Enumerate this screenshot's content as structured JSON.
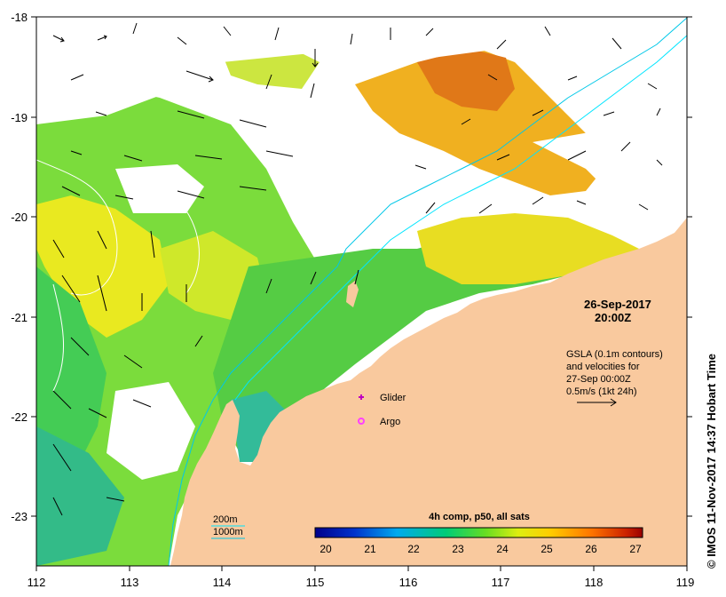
{
  "map": {
    "date": "26-Sep-2017",
    "time": "20:00Z",
    "gsla_line1": "GSLA (0.1m contours)",
    "gsla_line2": "and velocities for",
    "gsla_line3": "27-Sep 00:00Z",
    "velocity_scale": "0.5m/s (1kt 24h)",
    "glider_label": "Glider",
    "argo_label": "Argo",
    "depth_200": "200m",
    "depth_1000": "1000m",
    "colorbar_title": "4h comp, p50, all sats",
    "colorbar_ticks": [
      "20",
      "21",
      "22",
      "23",
      "24",
      "25",
      "26",
      "27"
    ],
    "credit": "© IMOS 11-Nov-2017 14:37 Hobart Time",
    "lon_ticks": [
      "112",
      "113",
      "114",
      "115",
      "116",
      "117",
      "118",
      "119"
    ],
    "lat_ticks": [
      "-18",
      "-19",
      "-20",
      "-21",
      "-22",
      "-23"
    ],
    "colors": {
      "land": "#f9c99e",
      "contour_200": "#00e5ff",
      "contour_1000": "#00c8e8",
      "glider": "#c000c0",
      "argo": "#ff40ff"
    }
  }
}
